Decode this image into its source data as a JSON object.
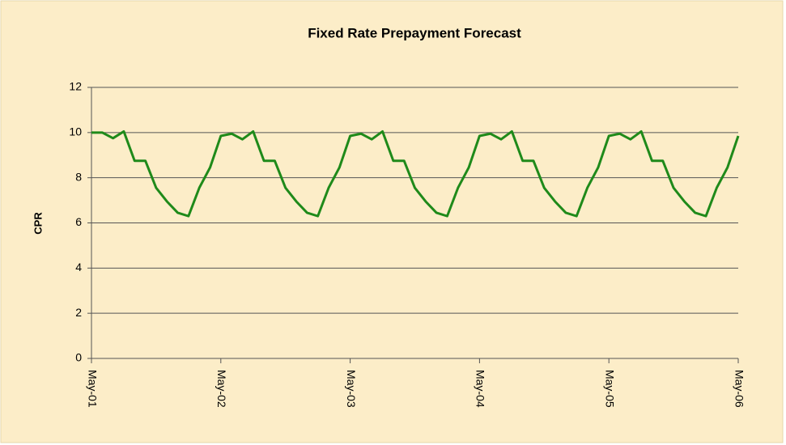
{
  "chart_data": {
    "type": "line",
    "title": "Fixed Rate Prepayment Forecast",
    "y_label": "CPR",
    "categories": [
      "May-01",
      null,
      null,
      null,
      null,
      null,
      null,
      null,
      null,
      null,
      null,
      null,
      "May-02",
      null,
      null,
      null,
      null,
      null,
      null,
      null,
      null,
      null,
      null,
      null,
      "May-03",
      null,
      null,
      null,
      null,
      null,
      null,
      null,
      null,
      null,
      null,
      null,
      "May-04",
      null,
      null,
      null,
      null,
      null,
      null,
      null,
      null,
      null,
      null,
      null,
      "May-05",
      null,
      null,
      null,
      null,
      null,
      null,
      null,
      null,
      null,
      null,
      null,
      "May-06"
    ],
    "series": [
      {
        "name": "CPR",
        "color": "#1f8a1a",
        "values": [
          10.0,
          10.0,
          9.75,
          10.05,
          8.75,
          8.75,
          7.55,
          6.95,
          6.45,
          6.3,
          7.55,
          8.45,
          9.85,
          9.95,
          9.7,
          10.05,
          8.75,
          8.75,
          7.55,
          6.95,
          6.45,
          6.3,
          7.55,
          8.45,
          9.85,
          9.95,
          9.7,
          10.05,
          8.75,
          8.75,
          7.55,
          6.95,
          6.45,
          6.3,
          7.55,
          8.45,
          9.85,
          9.95,
          9.7,
          10.05,
          8.75,
          8.75,
          7.55,
          6.95,
          6.45,
          6.3,
          7.55,
          8.45,
          9.85,
          9.95,
          9.7,
          10.05,
          8.75,
          8.75,
          7.55,
          6.95,
          6.45,
          6.3,
          7.55,
          8.45,
          9.85
        ]
      }
    ],
    "ylim": [
      0,
      12
    ],
    "yticks": [
      0,
      2,
      4,
      6,
      8,
      10,
      12
    ],
    "grid": true
  }
}
